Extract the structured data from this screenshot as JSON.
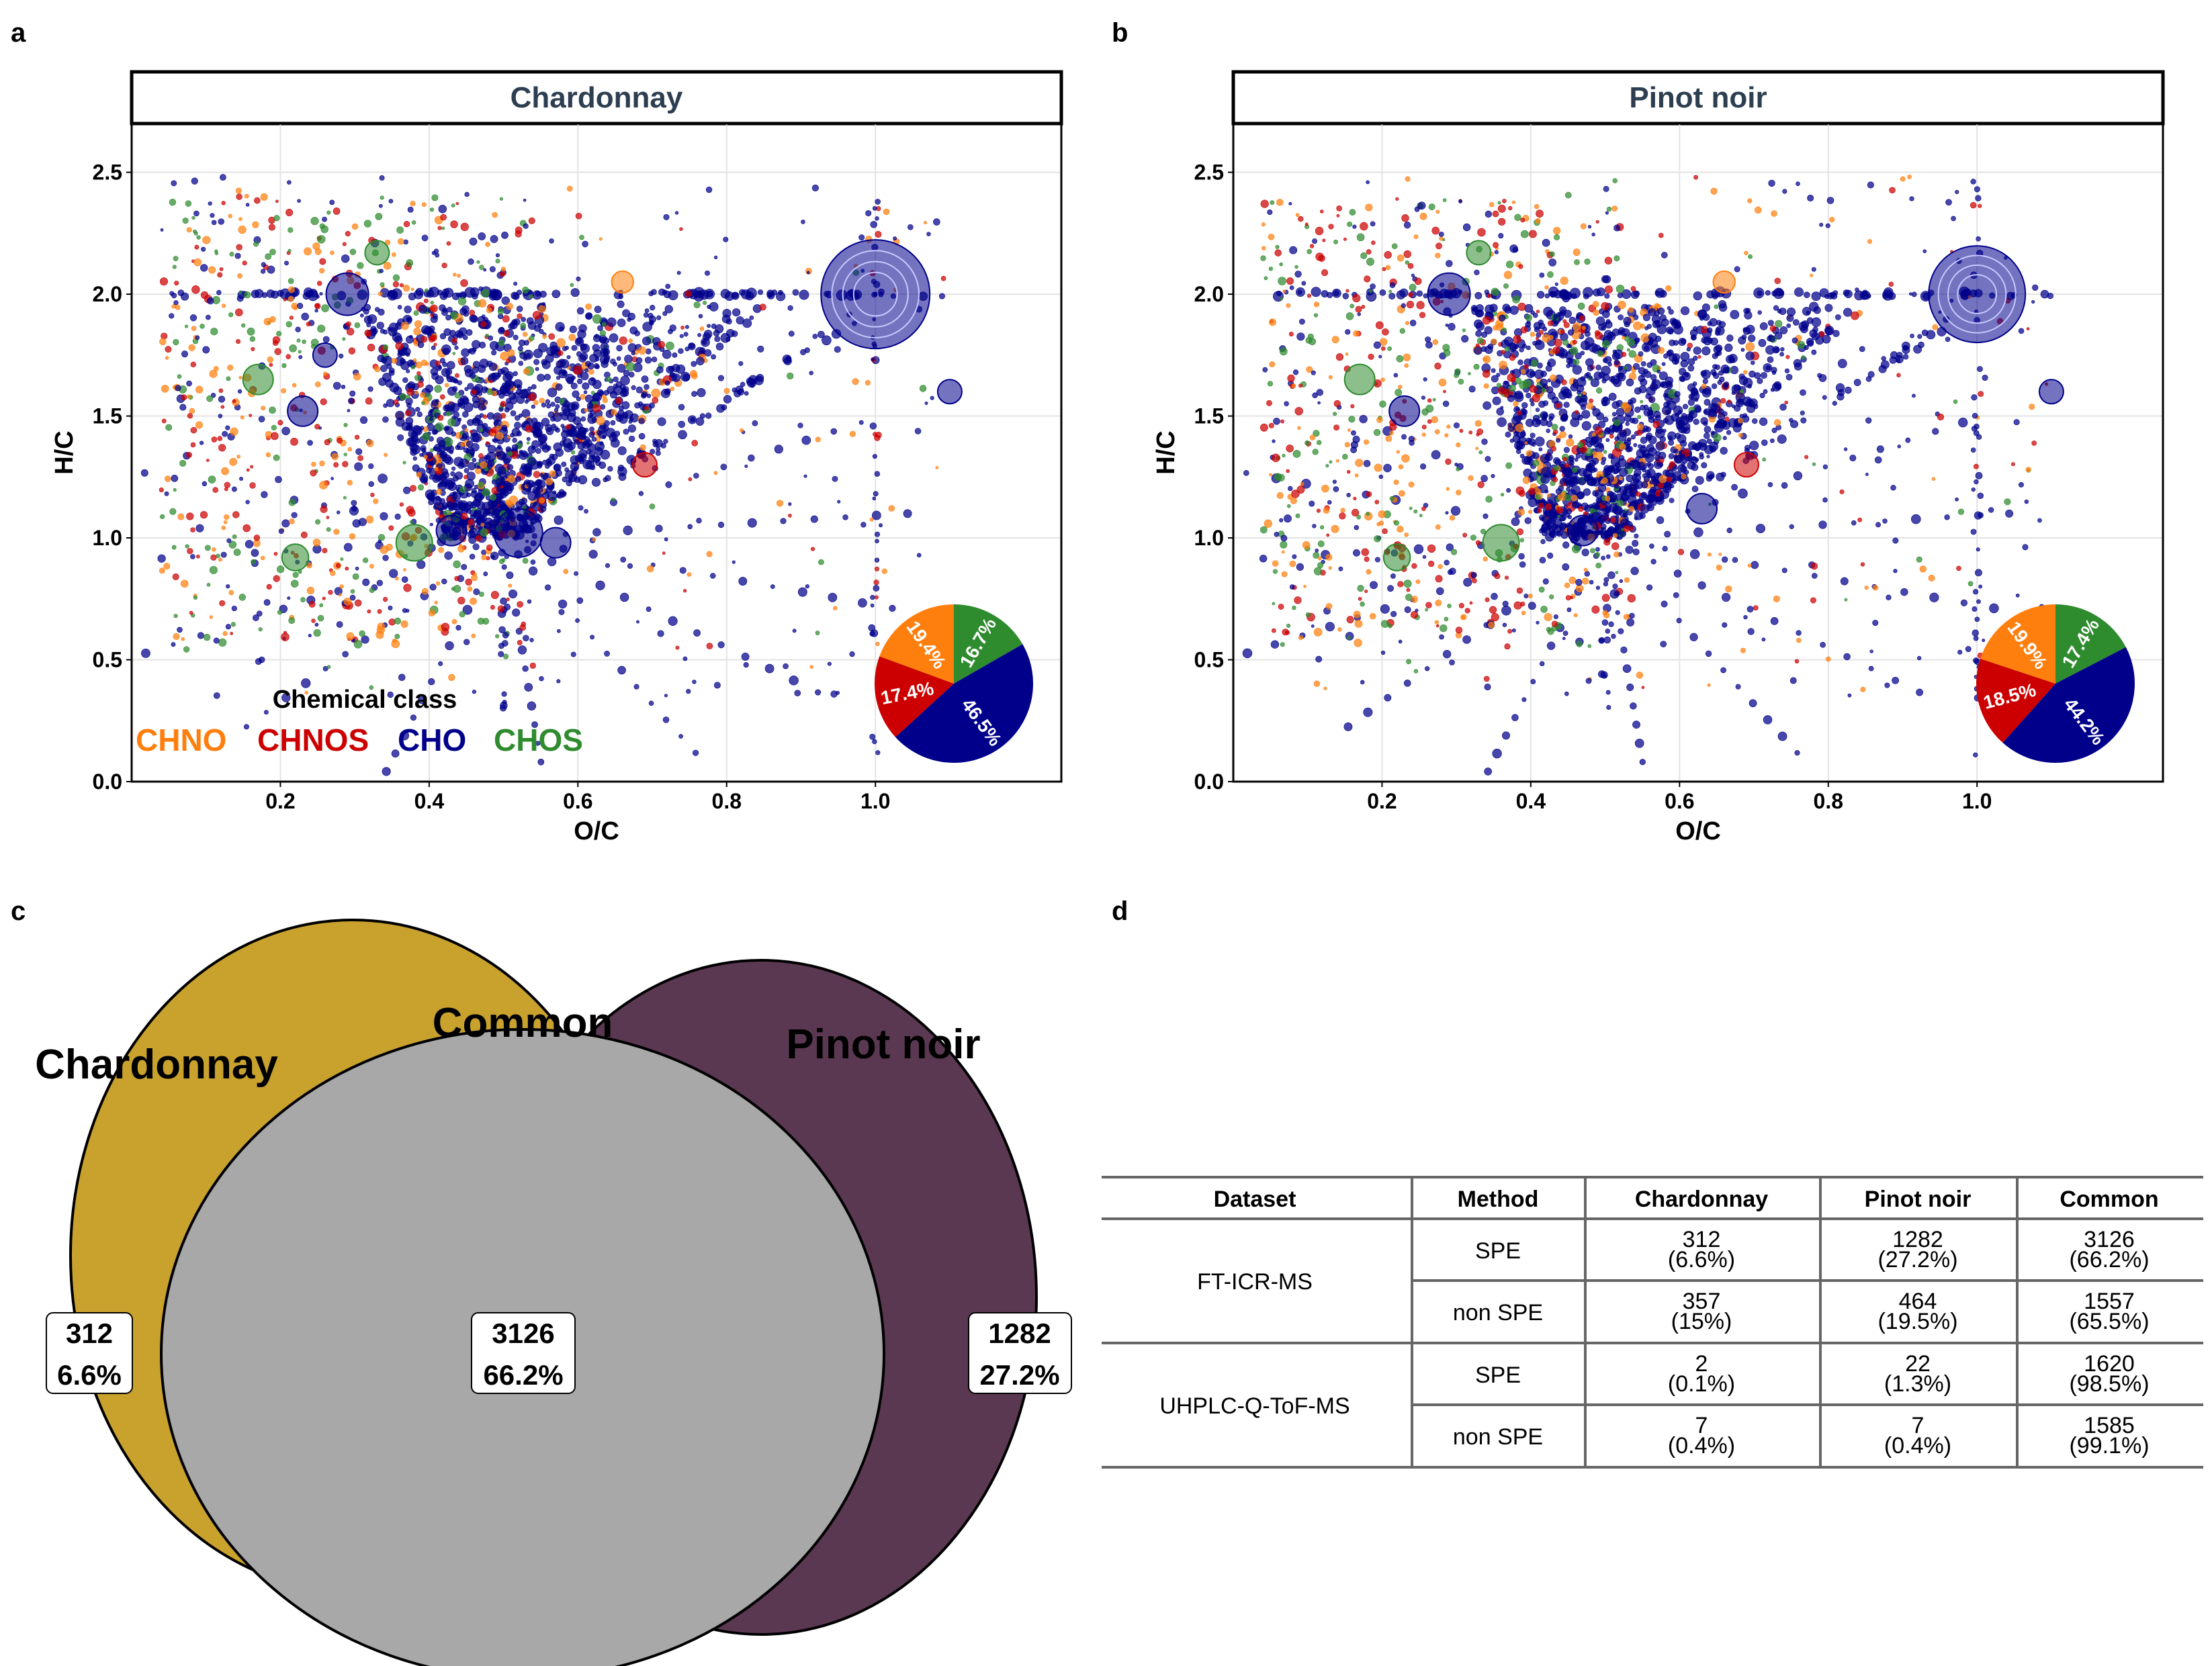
{
  "panel_labels": {
    "a": "a",
    "b": "b",
    "c": "c",
    "d": "d"
  },
  "colors": {
    "CHNO": "#ff7f0e",
    "CHNOS": "#cc0000",
    "CHO": "#00008b",
    "CHOS": "#2e8b2e",
    "venn_left": "#c9a22e",
    "venn_center": "#a8a8a8",
    "venn_right": "#5b3852",
    "strip_text": "#2c3e50"
  },
  "chart_data": [
    {
      "type": "scatter",
      "panel": "a",
      "title": "Chardonnay",
      "xlabel": "O/C",
      "ylabel": "H/C",
      "xlim": [
        0.0,
        1.25
      ],
      "ylim": [
        0.0,
        2.7
      ],
      "xticks": [
        "0.2",
        "0.4",
        "0.6",
        "0.8",
        "1.0"
      ],
      "xtick_values": [
        0.2,
        0.4,
        0.6,
        0.8,
        1.0
      ],
      "yticks": [
        "0.0",
        "0.5",
        "1.0",
        "1.5",
        "2.0",
        "2.5"
      ],
      "ytick_values": [
        0.0,
        0.5,
        1.0,
        1.5,
        2.0,
        2.5
      ],
      "legend": {
        "title": "Chemical class",
        "entries": [
          "CHNO",
          "CHNOS",
          "CHO",
          "CHOS"
        ]
      },
      "highlights": [
        {
          "x": 1.0,
          "y": 2.0,
          "class": "CHO",
          "size": 9
        },
        {
          "x": 0.52,
          "y": 1.02,
          "class": "CHO",
          "size": 4
        },
        {
          "x": 0.29,
          "y": 2.0,
          "class": "CHO",
          "size": 3.5
        },
        {
          "x": 0.43,
          "y": 1.03,
          "class": "CHO",
          "size": 2.5
        },
        {
          "x": 0.57,
          "y": 0.98,
          "class": "CHO",
          "size": 2.5
        },
        {
          "x": 0.23,
          "y": 1.52,
          "class": "CHO",
          "size": 2.5
        },
        {
          "x": 0.26,
          "y": 1.75,
          "class": "CHO",
          "size": 2
        },
        {
          "x": 0.38,
          "y": 0.98,
          "class": "CHOS",
          "size": 3
        },
        {
          "x": 0.17,
          "y": 1.65,
          "class": "CHOS",
          "size": 2.5
        },
        {
          "x": 0.33,
          "y": 2.17,
          "class": "CHOS",
          "size": 2
        },
        {
          "x": 0.22,
          "y": 0.92,
          "class": "CHOS",
          "size": 2.2
        },
        {
          "x": 0.69,
          "y": 1.3,
          "class": "CHNOS",
          "size": 2
        },
        {
          "x": 0.66,
          "y": 2.05,
          "class": "CHNO",
          "size": 1.8
        },
        {
          "x": 1.1,
          "y": 1.6,
          "class": "CHO",
          "size": 2
        }
      ],
      "inset_pie": {
        "slices": [
          {
            "label": "16.7%",
            "value": 16.7,
            "class": "CHOS"
          },
          {
            "label": "46.5%",
            "value": 46.5,
            "class": "CHO"
          },
          {
            "label": "17.4%",
            "value": 17.4,
            "class": "CHNOS"
          },
          {
            "label": "19.4%",
            "value": 19.4,
            "class": "CHNO"
          }
        ]
      }
    },
    {
      "type": "scatter",
      "panel": "b",
      "title": "Pinot noir",
      "xlabel": "O/C",
      "ylabel": "H/C",
      "xlim": [
        0.0,
        1.25
      ],
      "ylim": [
        0.0,
        2.7
      ],
      "xticks": [
        "0.2",
        "0.4",
        "0.6",
        "0.8",
        "1.0"
      ],
      "xtick_values": [
        0.2,
        0.4,
        0.6,
        0.8,
        1.0
      ],
      "yticks": [
        "0.0",
        "0.5",
        "1.0",
        "1.5",
        "2.0",
        "2.5"
      ],
      "ytick_values": [
        0.0,
        0.5,
        1.0,
        1.5,
        2.0,
        2.5
      ],
      "highlights": [
        {
          "x": 1.0,
          "y": 2.0,
          "class": "CHO",
          "size": 8
        },
        {
          "x": 0.29,
          "y": 2.0,
          "class": "CHO",
          "size": 3.5
        },
        {
          "x": 0.23,
          "y": 1.52,
          "class": "CHO",
          "size": 2.5
        },
        {
          "x": 0.47,
          "y": 1.03,
          "class": "CHO",
          "size": 2.5
        },
        {
          "x": 0.63,
          "y": 1.12,
          "class": "CHO",
          "size": 2.5
        },
        {
          "x": 0.36,
          "y": 0.98,
          "class": "CHOS",
          "size": 3
        },
        {
          "x": 0.17,
          "y": 1.65,
          "class": "CHOS",
          "size": 2.5
        },
        {
          "x": 0.33,
          "y": 2.17,
          "class": "CHOS",
          "size": 2
        },
        {
          "x": 0.22,
          "y": 0.92,
          "class": "CHOS",
          "size": 2.2
        },
        {
          "x": 0.69,
          "y": 1.3,
          "class": "CHNOS",
          "size": 2
        },
        {
          "x": 0.66,
          "y": 2.05,
          "class": "CHNO",
          "size": 1.8
        },
        {
          "x": 1.1,
          "y": 1.6,
          "class": "CHO",
          "size": 2
        }
      ],
      "inset_pie": {
        "slices": [
          {
            "label": "17.4%",
            "value": 17.4,
            "class": "CHOS"
          },
          {
            "label": "44.2%",
            "value": 44.2,
            "class": "CHO"
          },
          {
            "label": "18.5%",
            "value": 18.5,
            "class": "CHNOS"
          },
          {
            "label": "19.9%",
            "value": 19.9,
            "class": "CHNO"
          }
        ]
      }
    },
    {
      "type": "venn",
      "panel": "c",
      "sets": [
        {
          "name": "Chardonnay",
          "count": "312",
          "percent": "6.6%"
        },
        {
          "name": "Common",
          "count": "3126",
          "percent": "66.2%"
        },
        {
          "name": "Pinot noir",
          "count": "1282",
          "percent": "27.2%"
        }
      ]
    },
    {
      "type": "table",
      "panel": "d",
      "columns": [
        "Dataset",
        "Method",
        "Chardonnay",
        "Pinot noir",
        "Common"
      ],
      "rows": [
        {
          "dataset": "FT-ICR-MS",
          "method": "SPE",
          "chardonnay": [
            "312",
            "(6.6%)"
          ],
          "pinot": [
            "1282",
            "(27.2%)"
          ],
          "common": [
            "3126",
            "(66.2%)"
          ]
        },
        {
          "dataset": "",
          "method": "non SPE",
          "chardonnay": [
            "357",
            "(15%)"
          ],
          "pinot": [
            "464",
            "(19.5%)"
          ],
          "common": [
            "1557",
            "(65.5%)"
          ]
        },
        {
          "dataset": "UHPLC-Q-ToF-MS",
          "method": "SPE",
          "chardonnay": [
            "2",
            "(0.1%)"
          ],
          "pinot": [
            "22",
            "(1.3%)"
          ],
          "common": [
            "1620",
            "(98.5%)"
          ]
        },
        {
          "dataset": "",
          "method": "non SPE",
          "chardonnay": [
            "7",
            "(0.4%)"
          ],
          "pinot": [
            "7",
            "(0.4%)"
          ],
          "common": [
            "1585",
            "(99.1%)"
          ]
        }
      ]
    }
  ]
}
